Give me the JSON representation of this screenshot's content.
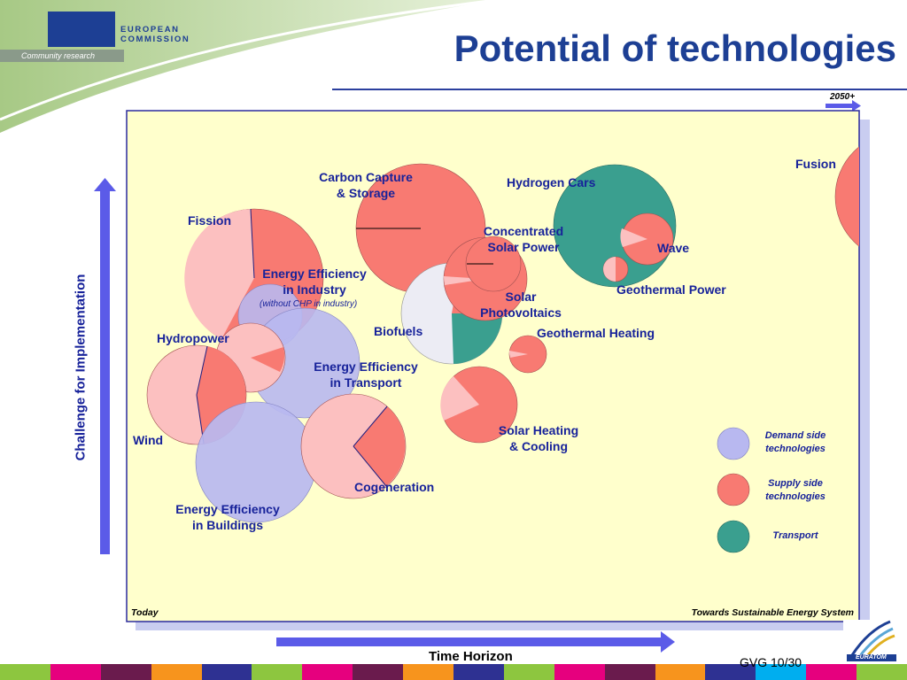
{
  "header": {
    "title": "Potential of technologies",
    "logo_line1": "EUROPEAN",
    "logo_line2": "COMMISSION",
    "logo_strip": "Community research"
  },
  "chart": {
    "label_today": "Today",
    "label_towards": "Towards Sustainable Energy System",
    "label_2050": "2050+",
    "y_axis_label": "Challenge for Implementation",
    "x_axis_label": "Time Horizon"
  },
  "technologies": {
    "fusion": "Fusion",
    "carbon_capture_1": "Carbon Capture",
    "carbon_capture_2": "& Storage",
    "hydrogen_cars": "Hydrogen Cars",
    "fission": "Fission",
    "concentrated_1": "Concentrated",
    "concentrated_2": "Solar Power",
    "wave": "Wave",
    "ee_industry_1": "Energy Efficiency",
    "ee_industry_2": "in Industry",
    "ee_industry_note": "(without CHP in industry)",
    "geothermal_power": "Geothermal Power",
    "solar_pv_1": "Solar",
    "solar_pv_2": "Photovoltaics",
    "biofuels": "Biofuels",
    "geothermal_heating": "Geothermal Heating",
    "hydropower": "Hydropower",
    "ee_transport_1": "Energy Efficiency",
    "ee_transport_2": "in Transport",
    "solar_heating_1": "Solar Heating",
    "solar_heating_2": "& Cooling",
    "wind": "Wind",
    "cogeneration": "Cogeneration",
    "ee_buildings_1": "Energy Efficiency",
    "ee_buildings_2": "in Buildings"
  },
  "legend": {
    "demand_1": "Demand side",
    "demand_2": "technologies",
    "supply_1": "Supply side",
    "supply_2": "technologies",
    "transport": "Transport"
  },
  "colors": {
    "demand": "#b8b8f0",
    "supply": "#f87a72",
    "supply_light": "#fcc0c0",
    "transport": "#3a9f8f",
    "panel": "#ffffcc",
    "title": "#1d3f94",
    "label": "#17229a"
  },
  "footer": {
    "page": "GVG 10/30",
    "euratom": "EURATOM"
  }
}
